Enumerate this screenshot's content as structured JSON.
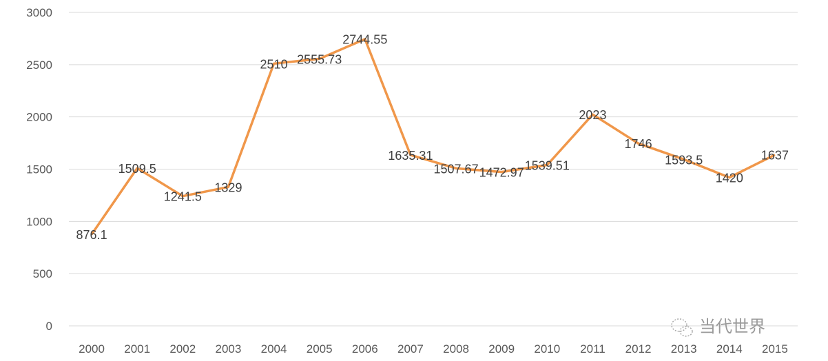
{
  "chart_data": {
    "type": "line",
    "title": "",
    "xlabel": "",
    "ylabel": "",
    "categories": [
      "2000",
      "2001",
      "2002",
      "2003",
      "2004",
      "2005",
      "2006",
      "2007",
      "2008",
      "2009",
      "2010",
      "2011",
      "2012",
      "2013",
      "2014",
      "2015"
    ],
    "series": [
      {
        "values": [
          876.1,
          1509.5,
          1241.5,
          1329,
          2510,
          2555.73,
          2744.55,
          1635.31,
          1507.67,
          1472.97,
          1539.51,
          2023,
          1746,
          1593.5,
          1420,
          1637
        ],
        "labels": [
          "876.1",
          "1509.5",
          "1241.5",
          "1329",
          "2510",
          "2555.73",
          "2744.55",
          "1635.31",
          "1507.67",
          "1472.97",
          "1539.51",
          "2023",
          "1746",
          "1593.5",
          "1420",
          "1637"
        ],
        "color": "#f0974a"
      }
    ],
    "ylim": [
      0,
      3000
    ],
    "yticks": [
      "0",
      "500",
      "1000",
      "1500",
      "2000",
      "2500",
      "3000"
    ],
    "grid": true,
    "legend": "none"
  },
  "watermark": {
    "text": "当代世界",
    "icon": "wechat-icon"
  }
}
